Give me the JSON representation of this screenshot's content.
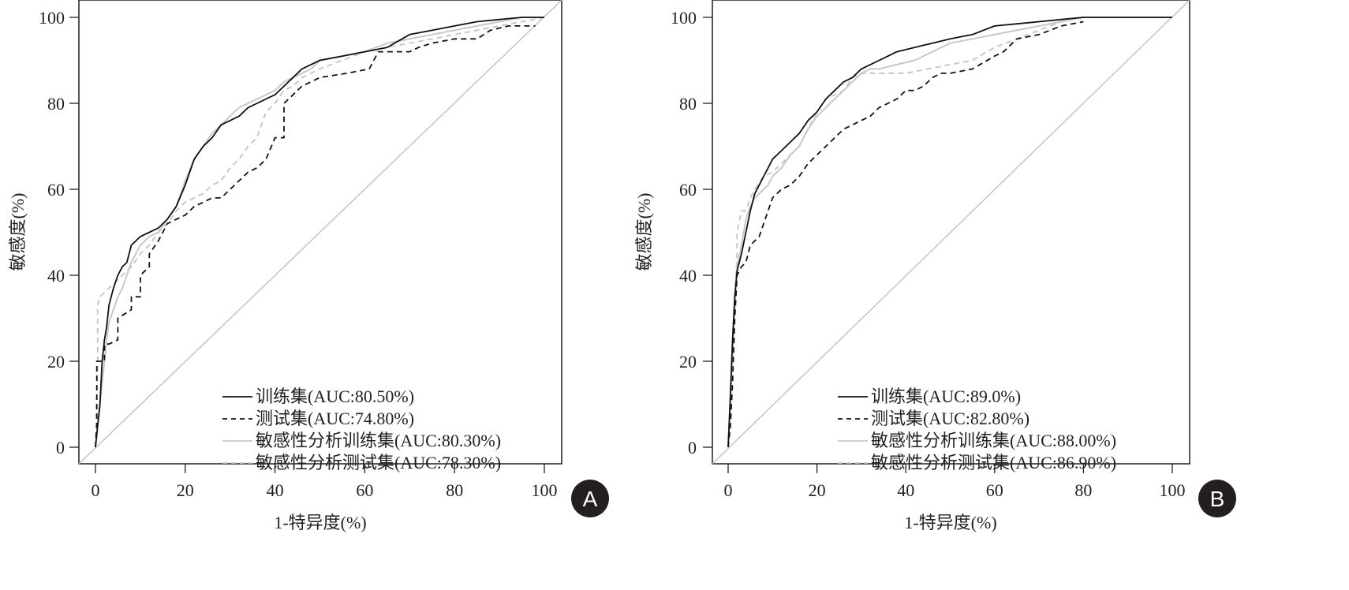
{
  "chart_data": [
    {
      "type": "line",
      "panel_label": "A",
      "xlabel": "1-特异度(%)",
      "ylabel": "敏感度(%)",
      "xlim": [
        0,
        100
      ],
      "ylim": [
        0,
        100
      ],
      "xticks": [
        "0",
        "20",
        "40",
        "60",
        "80",
        "100"
      ],
      "yticks": [
        "0",
        "20",
        "40",
        "60",
        "80",
        "100"
      ],
      "grid": false,
      "legend_position": "bottom-right",
      "reference_line": "diagonal",
      "series": [
        {
          "name": "训练集(AUC:80.50%)",
          "style": "solid",
          "color": "#111111",
          "x": [
            0,
            0.5,
            1,
            1.5,
            2,
            2.5,
            3,
            4,
            5,
            6,
            7,
            8,
            9,
            10,
            12,
            14,
            16,
            18,
            20,
            22,
            24,
            26,
            28,
            30,
            32,
            34,
            36,
            38,
            40,
            42,
            44,
            46,
            48,
            50,
            55,
            60,
            65,
            70,
            75,
            80,
            85,
            90,
            95,
            100
          ],
          "y": [
            0,
            5,
            10,
            20,
            25,
            28,
            33,
            37,
            40,
            42,
            43,
            47,
            48,
            49,
            50,
            51,
            53,
            56,
            61,
            67,
            70,
            72,
            75,
            76,
            77,
            79,
            80,
            81,
            82,
            84,
            86,
            88,
            89,
            90,
            91,
            92,
            93,
            96,
            97,
            98,
            99,
            99.5,
            100,
            100
          ]
        },
        {
          "name": "测试集(AUC:74.80%)",
          "style": "dashed",
          "color": "#111111",
          "x": [
            0,
            0.3,
            0.3,
            2,
            2,
            3,
            5,
            5,
            8,
            8,
            10,
            10,
            12,
            12,
            14,
            16,
            18,
            20,
            22,
            24,
            26,
            28,
            30,
            32,
            34,
            36,
            38,
            40,
            42,
            42,
            44,
            46,
            48,
            50,
            56,
            61,
            63,
            68,
            70,
            72,
            75,
            80,
            85,
            88,
            92,
            98
          ],
          "y": [
            0,
            5,
            20,
            20,
            24,
            24,
            25,
            30,
            32,
            35,
            35,
            40,
            42,
            45,
            48,
            52,
            53,
            54,
            56,
            57,
            58,
            58,
            60,
            62,
            64,
            65,
            67,
            72,
            72,
            80,
            82,
            84,
            85,
            86,
            87,
            88,
            92,
            92,
            92,
            93,
            94,
            95,
            95,
            97,
            98,
            98
          ]
        },
        {
          "name": "敏感性分析训练集(AUC:80.30%)",
          "style": "solid",
          "color": "#c8c8c8",
          "x": [
            0,
            1,
            2,
            2.5,
            3,
            4,
            5,
            6,
            7,
            8,
            9,
            10,
            12,
            14,
            16,
            18,
            20,
            22,
            24,
            26,
            28,
            30,
            32,
            34,
            36,
            38,
            40,
            42,
            44,
            46,
            48,
            50,
            55,
            60,
            65,
            70,
            75,
            80,
            85,
            90,
            95,
            100
          ],
          "y": [
            0,
            10,
            20,
            25,
            29,
            32,
            35,
            37,
            40,
            43,
            45,
            47,
            49,
            50,
            53,
            56,
            62,
            67,
            70,
            73,
            75,
            77,
            79,
            80,
            81,
            82,
            83,
            85,
            86,
            87,
            88,
            90,
            91,
            92,
            94,
            95,
            96,
            97,
            98,
            99,
            100,
            100
          ]
        },
        {
          "name": "敏感性分析测试集(AUC:78.30%)",
          "style": "dashed",
          "color": "#c8c8c8",
          "x": [
            0,
            0.5,
            0.5,
            1,
            2,
            4,
            6,
            8,
            10,
            12,
            14,
            16,
            18,
            20,
            22,
            24,
            26,
            28,
            30,
            32,
            34,
            36,
            38,
            40,
            42,
            44,
            46,
            48,
            50,
            55,
            60,
            65,
            70,
            75,
            80,
            85,
            90,
            95,
            100
          ],
          "y": [
            0,
            20,
            33,
            35,
            36,
            38,
            40,
            42,
            45,
            47,
            50,
            52,
            55,
            57,
            58,
            59,
            61,
            62,
            65,
            67,
            70,
            72,
            78,
            80,
            83,
            84,
            86,
            87,
            88,
            90,
            92,
            93,
            94,
            95,
            96,
            97,
            98,
            99,
            100
          ]
        }
      ]
    },
    {
      "type": "line",
      "panel_label": "B",
      "xlabel": "1-特异度(%)",
      "ylabel": "敏感度(%)",
      "xlim": [
        0,
        100
      ],
      "ylim": [
        0,
        100
      ],
      "xticks": [
        "0",
        "20",
        "40",
        "60",
        "80",
        "100"
      ],
      "yticks": [
        "0",
        "20",
        "40",
        "60",
        "80",
        "100"
      ],
      "grid": false,
      "legend_position": "bottom-right",
      "reference_line": "diagonal",
      "series": [
        {
          "name": "训练集(AUC:89.0%)",
          "style": "solid",
          "color": "#111111",
          "x": [
            0,
            0.5,
            1,
            1.5,
            2,
            3,
            4,
            5,
            6,
            7,
            8,
            9,
            10,
            12,
            14,
            16,
            18,
            20,
            22,
            24,
            26,
            28,
            30,
            32,
            34,
            36,
            38,
            40,
            42,
            44,
            46,
            48,
            50,
            55,
            60,
            65,
            70,
            75,
            80,
            90,
            100
          ],
          "y": [
            0,
            12,
            25,
            35,
            41,
            45,
            50,
            55,
            59,
            61,
            63,
            65,
            67,
            69,
            71,
            73,
            76,
            78,
            81,
            83,
            85,
            86,
            88,
            89,
            90,
            91,
            92,
            92.5,
            93,
            93.5,
            94,
            94.5,
            95,
            96,
            98,
            98.5,
            99,
            99.5,
            100,
            100,
            100
          ]
        },
        {
          "name": "测试集(AUC:82.80%)",
          "style": "dashed",
          "color": "#111111",
          "x": [
            0,
            0.5,
            1,
            1.5,
            2,
            3,
            4,
            5,
            6,
            7,
            8,
            10,
            12,
            14,
            16,
            18,
            20,
            22,
            24,
            26,
            28,
            30,
            32,
            34,
            36,
            38,
            40,
            42,
            44,
            46,
            48,
            50,
            55,
            60,
            62,
            65,
            70,
            75,
            80
          ],
          "y": [
            0,
            5,
            15,
            30,
            40,
            42,
            43,
            47,
            48,
            49,
            52,
            58,
            60,
            61,
            63,
            66,
            68,
            70,
            72,
            74,
            75,
            76,
            77,
            79,
            80,
            81,
            83,
            83,
            84,
            86,
            87,
            87,
            88,
            91,
            92,
            95,
            96,
            98,
            99
          ]
        },
        {
          "name": "敏感性分析训练集(AUC:88.00%)",
          "style": "solid",
          "color": "#c8c8c8",
          "x": [
            0,
            0.5,
            1,
            1.5,
            2,
            3,
            4,
            5,
            6,
            7,
            8,
            9,
            10,
            12,
            14,
            16,
            18,
            20,
            22,
            24,
            26,
            28,
            30,
            32,
            34,
            36,
            38,
            40,
            42,
            44,
            46,
            48,
            50,
            55,
            60,
            65,
            70,
            75,
            80,
            100
          ],
          "y": [
            0,
            10,
            22,
            33,
            42,
            47,
            53,
            56,
            58,
            59,
            60,
            61,
            63,
            65,
            68,
            70,
            74,
            77,
            79,
            81,
            83,
            85,
            87,
            88,
            88,
            88.5,
            89,
            89.5,
            90,
            91,
            92,
            93,
            94,
            95,
            96,
            97,
            98,
            99,
            100,
            100
          ]
        },
        {
          "name": "敏感性分析测试集(AUC:86.90%)",
          "style": "dashed",
          "color": "#c8c8c8",
          "x": [
            0,
            0.5,
            1,
            2,
            2,
            3,
            4,
            5,
            6,
            8,
            10,
            12,
            14,
            16,
            18,
            20,
            22,
            24,
            26,
            28,
            30,
            35,
            38,
            40,
            45,
            50,
            55,
            60,
            65,
            70,
            75,
            80,
            100
          ],
          "y": [
            0,
            10,
            25,
            45,
            50,
            55,
            55,
            58,
            60,
            63,
            64,
            66,
            68,
            70,
            74,
            78,
            81,
            82,
            83,
            86,
            87,
            87,
            87,
            87,
            88,
            89,
            90,
            93,
            95,
            97,
            99,
            100,
            100
          ]
        }
      ]
    }
  ]
}
